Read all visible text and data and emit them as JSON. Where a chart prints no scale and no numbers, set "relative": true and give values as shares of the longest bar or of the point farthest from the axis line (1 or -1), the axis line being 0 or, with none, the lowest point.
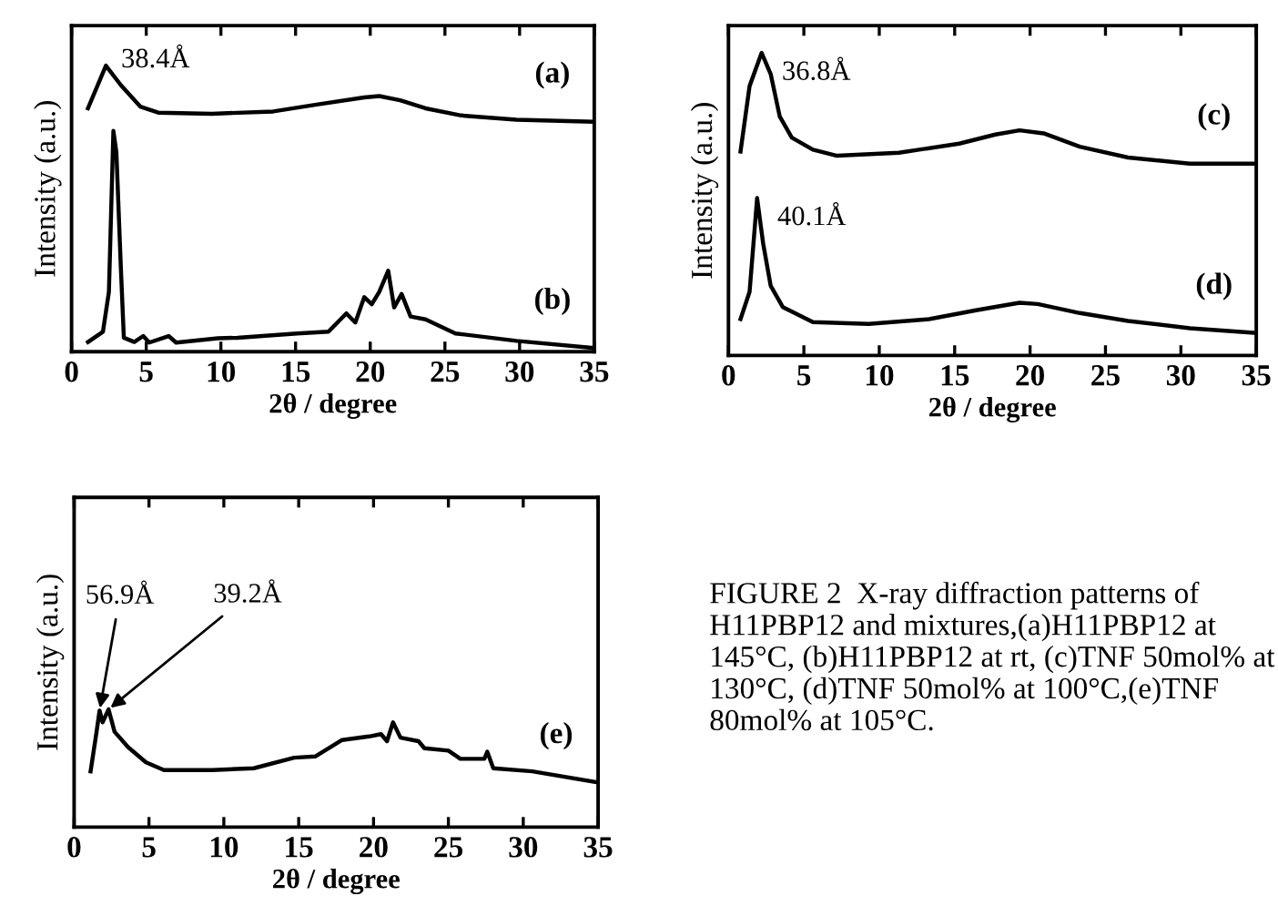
{
  "chart_data": [
    {
      "type": "line",
      "relative": true,
      "xlabel": "2θ / degree",
      "ylabel": "Intensity (a.u.)",
      "xlim": [
        0,
        35
      ],
      "xticks": [
        0,
        5,
        10,
        15,
        20,
        25,
        30,
        35
      ],
      "grid": false,
      "legend": "right",
      "marker": "none",
      "line_style": "solid",
      "series": [
        {
          "name": "(a)",
          "color": "#000000",
          "x": [
            1.1,
            2.3,
            3.3,
            4.6,
            5.8,
            9.4,
            13.5,
            16.4,
            19.6,
            20.6,
            22,
            23.7,
            26.1,
            29.8,
            35
          ],
          "values": [
            0.851,
            1.0,
            0.932,
            0.857,
            0.836,
            0.832,
            0.84,
            0.864,
            0.889,
            0.894,
            0.879,
            0.851,
            0.826,
            0.811,
            0.804
          ]
        },
        {
          "name": "(b)",
          "color": "#000000",
          "x": [
            1.1,
            2.1,
            2.5,
            2.8,
            3.0,
            3.3,
            3.5,
            4.2,
            4.8,
            5.2,
            6.5,
            7.0,
            9.8,
            11.1,
            15.1,
            17.2,
            18.4,
            19.0,
            19.6,
            20.1,
            20.6,
            21.2,
            21.6,
            22.1,
            22.7,
            23.7,
            25.7,
            29.8,
            35
          ],
          "values": [
            0.034,
            0.07,
            0.209,
            0.772,
            0.698,
            0.294,
            0.049,
            0.034,
            0.055,
            0.032,
            0.055,
            0.032,
            0.047,
            0.049,
            0.064,
            0.07,
            0.134,
            0.102,
            0.191,
            0.166,
            0.209,
            0.283,
            0.155,
            0.202,
            0.123,
            0.113,
            0.064,
            0.038,
            0.013
          ]
        }
      ],
      "annotations": [
        {
          "text": "38.4Å",
          "x": 2.3,
          "y": 1.0
        }
      ]
    },
    {
      "type": "line",
      "relative": true,
      "xlabel": "2θ / degree",
      "ylabel": "Intensity (a.u.)",
      "xlim": [
        0,
        35
      ],
      "xticks": [
        0,
        5,
        10,
        15,
        20,
        25,
        30,
        35
      ],
      "grid": false,
      "legend": "right",
      "marker": "none",
      "line_style": "solid",
      "series": [
        {
          "name": "(c)",
          "color": "#000000",
          "x": [
            0.8,
            1.4,
            2.2,
            2.8,
            3.4,
            4.2,
            5.6,
            7.2,
            11.3,
            15.3,
            17.7,
            19.3,
            20.9,
            23.3,
            26.5,
            30.6,
            35
          ],
          "values": [
            0.674,
            0.89,
            1.0,
            0.93,
            0.79,
            0.72,
            0.68,
            0.66,
            0.67,
            0.7,
            0.73,
            0.744,
            0.734,
            0.69,
            0.654,
            0.634,
            0.634
          ]
        },
        {
          "name": "(d)",
          "color": "#000000",
          "x": [
            0.8,
            1.4,
            1.9,
            2.3,
            2.8,
            3.6,
            5.6,
            9.3,
            13.3,
            16.5,
            19.3,
            20.5,
            23.3,
            26.5,
            30.6,
            35
          ],
          "values": [
            0.12,
            0.21,
            0.52,
            0.37,
            0.23,
            0.16,
            0.11,
            0.104,
            0.12,
            0.15,
            0.174,
            0.17,
            0.14,
            0.114,
            0.09,
            0.074
          ]
        }
      ],
      "annotations": [
        {
          "text": "36.8Å",
          "x": 2.2,
          "y": 1.0
        },
        {
          "text": "40.1Å",
          "x": 1.9,
          "y": 0.52
        }
      ]
    },
    {
      "type": "line",
      "relative": true,
      "xlabel": "2θ / degree",
      "ylabel": "Intensity (a.u.)",
      "xlim": [
        0,
        35
      ],
      "xticks": [
        0,
        5,
        10,
        15,
        20,
        25,
        30,
        35
      ],
      "grid": false,
      "legend": "right",
      "marker": "none",
      "line_style": "solid",
      "series": [
        {
          "name": "(e)",
          "color": "#000000",
          "x": [
            1.1,
            1.5,
            1.7,
            1.9,
            2.3,
            2.7,
            3.6,
            4.8,
            6.0,
            9.2,
            12.0,
            14.7,
            16.1,
            17.9,
            19.7,
            20.5,
            20.9,
            21.3,
            21.8,
            23.0,
            23.4,
            25.0,
            25.8,
            27.4,
            27.6,
            28.0,
            30.6,
            35
          ],
          "values": [
            0.474,
            0.81,
            0.99,
            0.89,
            1.0,
            0.81,
            0.68,
            0.55,
            0.485,
            0.485,
            0.5,
            0.59,
            0.6,
            0.74,
            0.77,
            0.79,
            0.73,
            0.89,
            0.76,
            0.73,
            0.67,
            0.65,
            0.58,
            0.58,
            0.64,
            0.5,
            0.474,
            0.38
          ]
        }
      ],
      "annotations": [
        {
          "text": "56.9Å",
          "x": 1.7,
          "y": 0.99
        },
        {
          "text": "39.2Å",
          "x": 2.3,
          "y": 1.0
        },
        "FIGURE 2  X-ray diffraction patterns of H11PBP12 and mixtures,(a)H11PBP12 at 145°C, (b)H11PBP12 at rt, (c)TNF 50mol% at 130°C, (d)TNF 50mol% at 100°C,(e)TNF 80mol% at 105°C."
      ]
    }
  ]
}
